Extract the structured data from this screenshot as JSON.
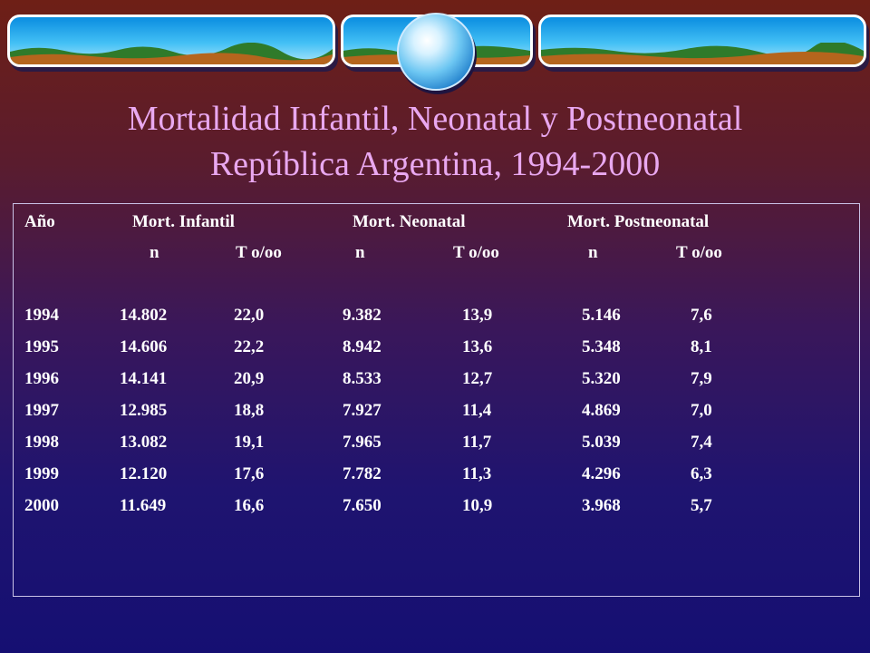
{
  "title": {
    "line1": "Mortalidad Infantil, Neonatal y Postneonatal",
    "line2": "República Argentina, 1994-2000"
  },
  "table": {
    "group_headers": [
      "Año",
      "Mort. Infantil",
      "Mort. Neonatal",
      "Mort. Postneonatal"
    ],
    "sub_headers": [
      "n",
      "T o/oo",
      "n",
      "T o/oo",
      "n",
      "T o/oo"
    ],
    "rows": [
      [
        "1994",
        "14.802",
        "22,0",
        "9.382",
        "13,9",
        "5.146",
        "7,6"
      ],
      [
        "1995",
        "14.606",
        "22,2",
        "8.942",
        "13,6",
        "5.348",
        "8,1"
      ],
      [
        "1996",
        "14.141",
        "20,9",
        "8.533",
        "12,7",
        "5.320",
        "7,9"
      ],
      [
        "1997",
        "12.985",
        "18,8",
        "7.927",
        "11,4",
        "4.869",
        "7,0"
      ],
      [
        "1998",
        "13.082",
        "19,1",
        "7.965",
        "11,7",
        "5.039",
        "7,4"
      ],
      [
        "1999",
        "12.120",
        "17,6",
        "7.782",
        "11,3",
        "4.296",
        "6,3"
      ],
      [
        "2000",
        "11.649",
        "16,6",
        "7.650",
        "10,9",
        "3.968",
        "5,7"
      ]
    ]
  }
}
